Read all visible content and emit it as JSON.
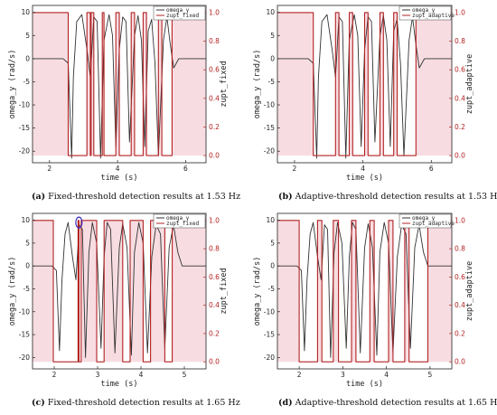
{
  "panels": [
    {
      "caption_letter": "(a)",
      "caption_text": " Fixed-threshold detection results at 1.53 Hz",
      "legend": [
        "omega_y",
        "zupt_fixed"
      ],
      "chart_data": {
        "type": "line",
        "xlabel": "time (s)",
        "ylabel_left": "omega_y (rad/s)",
        "ylabel_right": "zupt_fixed",
        "xlim": [
          1.5,
          6.6
        ],
        "ylim_left": [
          -22.5,
          11.5
        ],
        "ylim_right": [
          -0.05,
          1.05
        ],
        "xticks": [
          2,
          4,
          6
        ],
        "yticks_left": [
          10,
          5,
          0,
          -5,
          -10,
          -15,
          -20
        ],
        "yticks_right": [
          1.0,
          0.8,
          0.6,
          0.4,
          0.2,
          0.0
        ],
        "series": [
          {
            "name": "omega_y",
            "color": "#333333",
            "x": [
              1.5,
              2.4,
              2.55,
              2.65,
              2.7,
              2.8,
              2.95,
              3.1,
              3.2,
              3.3,
              3.4,
              3.5,
              3.6,
              3.75,
              3.85,
              3.95,
              4.05,
              4.15,
              4.25,
              4.35,
              4.5,
              4.6,
              4.7,
              4.8,
              4.9,
              5.0,
              5.1,
              5.2,
              5.35,
              5.45,
              5.55,
              5.65,
              5.8,
              6.6
            ],
            "y": [
              0,
              0,
              -1,
              -21.5,
              -4,
              8,
              9.5,
              2,
              -4,
              9,
              8,
              -21.5,
              4,
              9.5,
              5,
              -19,
              2,
              9,
              8,
              -18,
              5,
              9.3,
              4,
              -19,
              6,
              8.5,
              -1,
              -21,
              4,
              9,
              3,
              -2,
              0,
              0
            ]
          },
          {
            "name": "zupt_fixed",
            "color": "#b22222",
            "x": [
              1.5,
              2.55,
              2.55,
              3.1,
              3.1,
              3.2,
              3.2,
              3.22,
              3.22,
              3.3,
              3.3,
              3.55,
              3.55,
              3.6,
              3.6,
              3.95,
              3.95,
              4.05,
              4.05,
              4.4,
              4.4,
              4.5,
              4.5,
              4.75,
              4.75,
              4.85,
              4.85,
              5.2,
              5.2,
              5.3,
              5.3,
              5.6,
              5.6,
              6.6
            ],
            "y": [
              1,
              1,
              0,
              0,
              1,
              1,
              0,
              0,
              1,
              1,
              0,
              0,
              1,
              1,
              0,
              0,
              1,
              1,
              0,
              0,
              1,
              1,
              0,
              0,
              1,
              1,
              0,
              0,
              1,
              1,
              0,
              0,
              1,
              1
            ]
          }
        ]
      }
    },
    {
      "caption_letter": "(b)",
      "caption_text": " Adaptive-threshold detection results at 1.53 Hz",
      "legend": [
        "omega_y",
        "zupt_adaptive"
      ],
      "chart_data": {
        "type": "line",
        "xlabel": "time (s)",
        "ylabel_left": "omega_y (rad/s)",
        "ylabel_right": "zupt_adaptive",
        "xlim": [
          1.5,
          6.6
        ],
        "ylim_left": [
          -22.5,
          11.5
        ],
        "ylim_right": [
          -0.05,
          1.05
        ],
        "xticks": [
          2,
          4,
          6
        ],
        "yticks_left": [
          10,
          5,
          0,
          -5,
          -10,
          -15,
          -20
        ],
        "yticks_right": [
          1.0,
          0.8,
          0.6,
          0.4,
          0.2,
          0.0
        ],
        "series": [
          {
            "name": "omega_y",
            "color": "#333333",
            "x": [
              1.5,
              2.4,
              2.55,
              2.65,
              2.7,
              2.8,
              2.95,
              3.1,
              3.2,
              3.3,
              3.4,
              3.5,
              3.6,
              3.75,
              3.85,
              3.95,
              4.05,
              4.15,
              4.25,
              4.35,
              4.5,
              4.6,
              4.7,
              4.8,
              4.9,
              5.0,
              5.1,
              5.2,
              5.35,
              5.45,
              5.55,
              5.65,
              5.8,
              6.6
            ],
            "y": [
              0,
              0,
              -1,
              -21.5,
              -4,
              8,
              9.5,
              2,
              -4,
              9,
              8,
              -21.5,
              4,
              9.5,
              5,
              -19,
              2,
              9,
              8,
              -18,
              5,
              9.3,
              4,
              -19,
              6,
              8.5,
              -1,
              -21,
              4,
              9,
              3,
              -2,
              0,
              0
            ]
          },
          {
            "name": "zupt_adaptive",
            "color": "#b22222",
            "x": [
              1.5,
              2.55,
              2.55,
              3.2,
              3.2,
              3.3,
              3.3,
              3.6,
              3.6,
              3.7,
              3.7,
              4.05,
              4.05,
              4.15,
              4.15,
              4.5,
              4.5,
              4.6,
              4.6,
              4.9,
              4.9,
              5.0,
              5.0,
              5.55,
              5.55,
              6.6
            ],
            "y": [
              1,
              1,
              0,
              0,
              1,
              1,
              0,
              0,
              1,
              1,
              0,
              0,
              1,
              1,
              0,
              0,
              1,
              1,
              0,
              0,
              1,
              1,
              0,
              0,
              1,
              1
            ]
          }
        ]
      }
    },
    {
      "caption_letter": "(c)",
      "caption_text": " Fixed-threshold detection results at 1.65 Hz",
      "legend": [
        "omega_y",
        "zupt_fixed"
      ],
      "chart_data": {
        "type": "line",
        "xlabel": "time (s)",
        "ylabel_left": "omega_y (rad/s)",
        "ylabel_right": "zupt_fixed",
        "xlim": [
          1.5,
          5.5
        ],
        "ylim_left": [
          -22.5,
          11.5
        ],
        "ylim_right": [
          -0.05,
          1.05
        ],
        "xticks": [
          2,
          3,
          4,
          5
        ],
        "yticks_left": [
          10,
          5,
          0,
          -5,
          -10,
          -15,
          -20
        ],
        "yticks_right": [
          1.0,
          0.8,
          0.6,
          0.4,
          0.2,
          0.0
        ],
        "series": [
          {
            "name": "omega_y",
            "color": "#333333",
            "x": [
              1.5,
              1.95,
              2.05,
              2.12,
              2.18,
              2.25,
              2.32,
              2.42,
              2.5,
              2.58,
              2.65,
              2.72,
              2.8,
              2.88,
              2.98,
              3.08,
              3.15,
              3.22,
              3.3,
              3.4,
              3.5,
              3.58,
              3.68,
              3.78,
              3.85,
              3.95,
              4.05,
              4.15,
              4.25,
              4.35,
              4.45,
              4.55,
              4.65,
              4.75,
              4.85,
              4.95,
              5.5
            ],
            "y": [
              0,
              0,
              -1,
              -18.5,
              -3,
              7,
              9.5,
              2,
              -3,
              9,
              8,
              -20,
              3,
              9.5,
              5,
              -18,
              2,
              9.5,
              8,
              -19,
              4,
              9.2,
              4,
              -19.5,
              3,
              9.5,
              5,
              -19,
              2,
              9,
              7,
              -18,
              4,
              9,
              3,
              0,
              0
            ]
          },
          {
            "name": "zupt_fixed",
            "color": "#b22222",
            "x": [
              1.5,
              1.98,
              1.98,
              2.55,
              2.55,
              2.57,
              2.57,
              2.62,
              2.62,
              2.98,
              2.98,
              3.15,
              3.15,
              3.58,
              3.58,
              3.75,
              3.75,
              4.05,
              4.05,
              4.22,
              4.22,
              4.55,
              4.55,
              4.72,
              4.72,
              5.02,
              5.02,
              5.5
            ],
            "y": [
              1,
              1,
              0,
              0,
              1,
              1,
              0,
              0,
              1,
              1,
              0,
              0,
              1,
              1,
              0,
              0,
              1,
              1,
              0,
              0,
              1,
              1,
              0,
              0,
              1,
              1,
              1,
              1
            ]
          }
        ]
      }
    },
    {
      "caption_letter": "(d)",
      "caption_text": " Adaptive-threshold detection results at 1.65 Hz",
      "legend": [
        "omega_y",
        "zupt_adaptive"
      ],
      "chart_data": {
        "type": "line",
        "xlabel": "time (s)",
        "ylabel_left": "omega_y (rad/s)",
        "ylabel_right": "zupt_adaptive",
        "xlim": [
          1.5,
          5.5
        ],
        "ylim_left": [
          -22.5,
          11.5
        ],
        "ylim_right": [
          -0.05,
          1.05
        ],
        "xticks": [
          2,
          3,
          4,
          5
        ],
        "yticks_left": [
          10,
          5,
          0,
          -5,
          -10,
          -15,
          -20
        ],
        "yticks_right": [
          1.0,
          0.8,
          0.6,
          0.4,
          0.2,
          0.0
        ],
        "series": [
          {
            "name": "omega_y",
            "color": "#333333",
            "x": [
              1.5,
              1.95,
              2.05,
              2.12,
              2.18,
              2.25,
              2.32,
              2.42,
              2.5,
              2.58,
              2.65,
              2.72,
              2.8,
              2.88,
              2.98,
              3.08,
              3.15,
              3.22,
              3.3,
              3.4,
              3.5,
              3.58,
              3.68,
              3.78,
              3.85,
              3.95,
              4.05,
              4.15,
              4.25,
              4.35,
              4.45,
              4.55,
              4.65,
              4.75,
              4.85,
              4.95,
              5.5
            ],
            "y": [
              0,
              0,
              -1,
              -18.5,
              -3,
              7,
              9.5,
              2,
              -3,
              9,
              8,
              -20,
              3,
              9.5,
              5,
              -18,
              2,
              9.5,
              8,
              -19,
              4,
              9.2,
              4,
              -19.5,
              3,
              9.5,
              5,
              -19,
              2,
              9,
              7,
              -18,
              4,
              9,
              3,
              0,
              0
            ]
          },
          {
            "name": "zupt_adaptive",
            "color": "#b22222",
            "x": [
              1.5,
              2.0,
              2.0,
              2.42,
              2.42,
              2.52,
              2.52,
              2.78,
              2.78,
              2.9,
              2.9,
              3.2,
              3.2,
              3.3,
              3.3,
              3.62,
              3.62,
              3.72,
              3.72,
              4.05,
              4.05,
              4.15,
              4.15,
              4.42,
              4.42,
              4.52,
              4.52,
              4.95,
              4.95,
              5.5
            ],
            "y": [
              1,
              1,
              0,
              0,
              1,
              1,
              0,
              0,
              1,
              1,
              0,
              0,
              1,
              1,
              0,
              0,
              1,
              1,
              0,
              0,
              1,
              1,
              0,
              0,
              1,
              1,
              0,
              0,
              1,
              1
            ]
          }
        ]
      }
    }
  ],
  "highlight": {
    "panel": 2,
    "x": 2.57,
    "y": 9.5,
    "color": "#3a2bbf"
  }
}
